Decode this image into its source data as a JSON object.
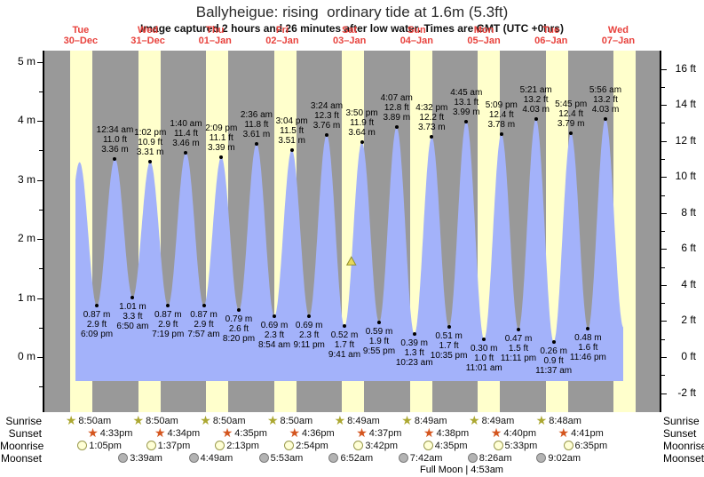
{
  "header": {
    "title": "Ballyheigue: rising  ordinary tide at 1.6m (5.3ft)",
    "subtitle": "Image captured 2 hours and 26 minutes after low water. Times are GMT (UTC +0hrs)"
  },
  "chart_data": {
    "type": "area",
    "title": "Ballyheigue: rising  ordinary tide at 1.6m (5.3ft)",
    "ylabel_left": "m",
    "ylabel_right": "ft",
    "y_axis_left_ticks_m": [
      5,
      4,
      3,
      2,
      1,
      0
    ],
    "y_axis_right_ticks_ft": [
      16,
      14,
      12,
      10,
      8,
      6,
      4,
      2,
      0,
      -2
    ],
    "ylim_m": [
      -0.95,
      5.2
    ],
    "grid": false,
    "legend": "none",
    "days": [
      {
        "name": "Tue",
        "date": "30–Dec"
      },
      {
        "name": "Wed",
        "date": "31–Dec"
      },
      {
        "name": "Thu",
        "date": "01–Jan"
      },
      {
        "name": "Fri",
        "date": "02–Jan"
      },
      {
        "name": "Sat",
        "date": "03–Jan"
      },
      {
        "name": "Sun",
        "date": "04–Jan"
      },
      {
        "name": "Mon",
        "date": "05–Jan"
      },
      {
        "name": "Tue",
        "date": "06–Jan"
      },
      {
        "name": "Wed",
        "date": "07–Jan"
      }
    ],
    "extremes": [
      {
        "kind": "L",
        "t": 5.75,
        "meters": 0.9,
        "labels": null
      },
      {
        "kind": "H",
        "t": 12.08,
        "meters": 3.3,
        "labels": null
      },
      {
        "kind": "L",
        "t": 18.15,
        "meters": 0.87,
        "labels": [
          "0.87 m",
          "2.9 ft",
          "6:09 pm"
        ]
      },
      {
        "kind": "H",
        "t": 24.567,
        "meters": 3.36,
        "labels": [
          "12:34 am",
          "11.0 ft",
          "3.36 m"
        ]
      },
      {
        "kind": "L",
        "t": 30.833,
        "meters": 1.01,
        "labels": [
          "1.01 m",
          "3.3 ft",
          "6:50 am"
        ]
      },
      {
        "kind": "H",
        "t": 37.033,
        "meters": 3.31,
        "labels": [
          "1:02 pm",
          "10.9 ft",
          "3.31 m"
        ]
      },
      {
        "kind": "L",
        "t": 43.317,
        "meters": 0.87,
        "labels": [
          "0.87 m",
          "2.9 ft",
          "7:19 pm"
        ]
      },
      {
        "kind": "H",
        "t": 49.667,
        "meters": 3.46,
        "labels": [
          "1:40 am",
          "11.4 ft",
          "3.46 m"
        ]
      },
      {
        "kind": "L",
        "t": 55.95,
        "meters": 0.87,
        "labels": [
          "0.87 m",
          "2.9 ft",
          "7:57 am"
        ]
      },
      {
        "kind": "H",
        "t": 62.15,
        "meters": 3.39,
        "labels": [
          "2:09 pm",
          "11.1 ft",
          "3.39 m"
        ]
      },
      {
        "kind": "L",
        "t": 68.333,
        "meters": 0.79,
        "labels": [
          "0.79 m",
          "2.6 ft",
          "8:20 pm"
        ]
      },
      {
        "kind": "H",
        "t": 74.6,
        "meters": 3.61,
        "labels": [
          "2:36 am",
          "11.8 ft",
          "3.61 m"
        ]
      },
      {
        "kind": "L",
        "t": 80.9,
        "meters": 0.69,
        "labels": [
          "0.69 m",
          "2.3 ft",
          "8:54 am"
        ]
      },
      {
        "kind": "H",
        "t": 87.067,
        "meters": 3.51,
        "labels": [
          "3:04 pm",
          "11.5 ft",
          "3.51 m"
        ]
      },
      {
        "kind": "L",
        "t": 93.183,
        "meters": 0.69,
        "labels": [
          "0.69 m",
          "2.3 ft",
          "9:11 pm"
        ]
      },
      {
        "kind": "H",
        "t": 99.4,
        "meters": 3.76,
        "labels": [
          "3:24 am",
          "12.3 ft",
          "3.76 m"
        ]
      },
      {
        "kind": "L",
        "t": 105.683,
        "meters": 0.52,
        "labels": [
          "0.52 m",
          "1.7 ft",
          "9:41 am"
        ]
      },
      {
        "kind": "H",
        "t": 111.833,
        "meters": 3.64,
        "labels": [
          "3:50 pm",
          "11.9 ft",
          "3.64 m"
        ]
      },
      {
        "kind": "L",
        "t": 117.917,
        "meters": 0.59,
        "labels": [
          "0.59 m",
          "1.9 ft",
          "9:55 pm"
        ]
      },
      {
        "kind": "H",
        "t": 124.117,
        "meters": 3.89,
        "labels": [
          "4:07 am",
          "12.8 ft",
          "3.89 m"
        ]
      },
      {
        "kind": "L",
        "t": 130.383,
        "meters": 0.39,
        "labels": [
          "0.39 m",
          "1.3 ft",
          "10:23 am"
        ]
      },
      {
        "kind": "H",
        "t": 136.533,
        "meters": 3.73,
        "labels": [
          "4:32 pm",
          "12.2 ft",
          "3.73 m"
        ]
      },
      {
        "kind": "L",
        "t": 142.583,
        "meters": 0.51,
        "labels": [
          "0.51 m",
          "1.7 ft",
          "10:35 pm"
        ]
      },
      {
        "kind": "H",
        "t": 148.75,
        "meters": 3.99,
        "labels": [
          "4:45 am",
          "13.1 ft",
          "3.99 m"
        ]
      },
      {
        "kind": "L",
        "t": 155.017,
        "meters": 0.3,
        "labels": [
          "0.30 m",
          "1.0 ft",
          "11:01 am"
        ]
      },
      {
        "kind": "H",
        "t": 161.15,
        "meters": 3.78,
        "labels": [
          "5:09 pm",
          "12.4 ft",
          "3.78 m"
        ]
      },
      {
        "kind": "L",
        "t": 167.183,
        "meters": 0.47,
        "labels": [
          "0.47 m",
          "1.5 ft",
          "11:11 pm"
        ]
      },
      {
        "kind": "H",
        "t": 173.35,
        "meters": 4.03,
        "labels": [
          "5:21 am",
          "13.2 ft",
          "4.03 m"
        ]
      },
      {
        "kind": "L",
        "t": 179.617,
        "meters": 0.26,
        "labels": [
          "0.26 m",
          "0.9 ft",
          "11:37 am"
        ]
      },
      {
        "kind": "H",
        "t": 185.75,
        "meters": 3.79,
        "labels": [
          "5:45 pm",
          "12.4 ft",
          "3.79 m"
        ]
      },
      {
        "kind": "L",
        "t": 191.767,
        "meters": 0.48,
        "labels": [
          "0.48 m",
          "1.6 ft",
          "11:46 pm"
        ]
      },
      {
        "kind": "H",
        "t": 197.933,
        "meters": 4.03,
        "labels": [
          "5:56 am",
          "13.2 ft",
          "4.03 m"
        ]
      },
      {
        "kind": "L",
        "t": 204.3,
        "meters": 0.5,
        "labels": null
      },
      {
        "kind": "H",
        "t": 210.5,
        "meters": 3.4,
        "labels": null
      }
    ],
    "current_marker": {
      "t": 108.11,
      "meters": 1.62
    },
    "colors": {
      "night": "#999999",
      "daylight": "#ffffcc",
      "water": "#a3b2fa",
      "day_label": "#e8413c",
      "marker_fill": "#e8d95a",
      "marker_stroke": "#8f8f2a"
    }
  },
  "almanac": {
    "row_labels": [
      "Sunrise",
      "Sunset",
      "Moonrise",
      "Moonset"
    ],
    "sunrise": [
      "8:50am",
      "8:50am",
      "8:50am",
      "8:50am",
      "8:49am",
      "8:49am",
      "8:49am",
      "8:48am"
    ],
    "sunset": [
      "4:33pm",
      "4:34pm",
      "4:35pm",
      "4:36pm",
      "4:37pm",
      "4:38pm",
      "4:40pm",
      "4:41pm"
    ],
    "moonrise": [
      "1:05pm",
      "1:37pm",
      "2:13pm",
      "2:54pm",
      "3:42pm",
      "4:35pm",
      "5:33pm",
      "6:35pm"
    ],
    "moonset": [
      null,
      "3:39am",
      "4:49am",
      "5:53am",
      "6:52am",
      "7:42am",
      "8:26am",
      "9:02am"
    ],
    "moon_phase_note": "Full Moon | 4:53am"
  }
}
